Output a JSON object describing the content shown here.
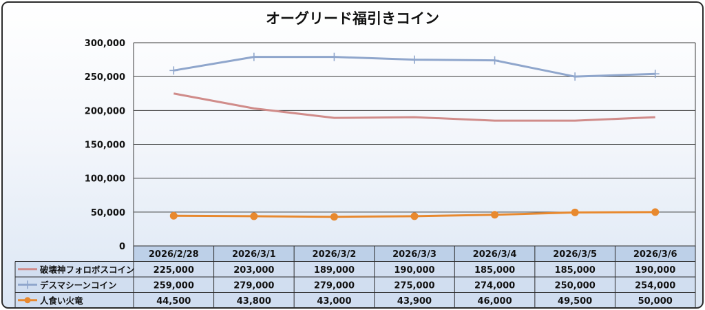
{
  "chart_data": {
    "type": "line",
    "title": "オーグリード福引きコイン",
    "categories": [
      "2026/2/28",
      "2026/3/1",
      "2026/3/2",
      "2026/3/3",
      "2026/3/4",
      "2026/3/5",
      "2026/3/6"
    ],
    "series": [
      {
        "name": "破壊神フォロボスコイン",
        "color": "#d08c8a",
        "marker": "none",
        "values": [
          225000,
          203000,
          189000,
          190000,
          185000,
          185000,
          190000
        ],
        "labels": [
          "225,000",
          "203,000",
          "189,000",
          "190,000",
          "185,000",
          "185,000",
          "190,000"
        ]
      },
      {
        "name": "デスマシーンコイン",
        "color": "#8fa6cc",
        "marker": "plus",
        "values": [
          259000,
          279000,
          279000,
          275000,
          274000,
          250000,
          254000
        ],
        "labels": [
          "259,000",
          "279,000",
          "279,000",
          "275,000",
          "274,000",
          "250,000",
          "254,000"
        ]
      },
      {
        "name": "人食い火竜",
        "color": "#e8892f",
        "marker": "circle",
        "values": [
          44500,
          43800,
          43000,
          43900,
          46000,
          49500,
          50000
        ],
        "labels": [
          "44,500",
          "43,800",
          "43,000",
          "43,900",
          "46,000",
          "49,500",
          "50,000"
        ]
      }
    ],
    "ylim": [
      0,
      300000
    ],
    "yticks": [
      0,
      50000,
      100000,
      150000,
      200000,
      250000,
      300000
    ],
    "ytick_labels": [
      "0",
      "50,000",
      "100,000",
      "150,000",
      "200,000",
      "250,000",
      "300,000"
    ],
    "grid": "horizontal",
    "legend": "data-table-below"
  }
}
